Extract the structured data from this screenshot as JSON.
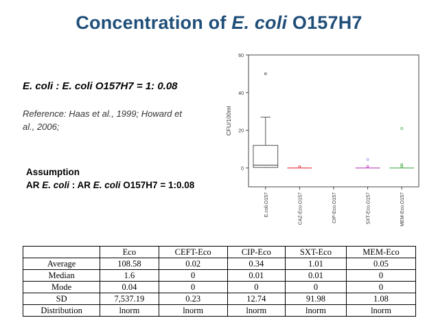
{
  "title": {
    "prefix": "Concentration of ",
    "italic": "E. coli",
    "suffix": " O157H7"
  },
  "ratio_text": "E. coli : E. coli O157H7 = 1: 0.08",
  "reference_text": "Reference: Haas et al., 1999; Howard et al., 2006;",
  "assumption": {
    "heading": "Assumption",
    "line_prefix": "AR ",
    "line_italic1": "E. coli",
    "line_mid": " : AR ",
    "line_italic2": "E. coli",
    "line_suffix": " O157H7 = 1:0.08"
  },
  "table": {
    "columns": [
      "",
      "Eco",
      "CEFT-Eco",
      "CIP-Eco",
      "SXT-Eco",
      "MEM-Eco"
    ],
    "rows": [
      [
        "Average",
        "108.58",
        "0.02",
        "0.34",
        "1.01",
        "0.05"
      ],
      [
        "Median",
        "1.6",
        "0",
        "0.01",
        "0.01",
        "0"
      ],
      [
        "Mode",
        "0.04",
        "0",
        "0",
        "0",
        "0"
      ],
      [
        "SD",
        "7,537.19",
        "0.23",
        "12.74",
        "91.98",
        "1.08"
      ],
      [
        "Distribution",
        "lnorm",
        "lnorm",
        "lnorm",
        "lnorm",
        "lnorm"
      ]
    ]
  },
  "chart_data": {
    "type": "box",
    "ylabel": "CFU/100ml",
    "ylim": [
      -10,
      60
    ],
    "yticks": [
      0,
      20,
      40,
      60
    ],
    "categories": [
      "E.coli.O157",
      "CAZ-Eco.O157",
      "CIP-Eco.O157",
      "SXT-Eco.O157",
      "MEM-Eco.O157"
    ],
    "series": [
      {
        "category": "E.coli.O157",
        "color": "#555555",
        "q1": 0.3,
        "median": 1.5,
        "q3": 12,
        "whisker_low": 0,
        "whisker_high": 27,
        "outliers": [
          50
        ]
      },
      {
        "category": "CAZ-Eco.O157",
        "color": "#e0303a",
        "q1": 0,
        "median": 0,
        "q3": 0,
        "whisker_low": 0,
        "whisker_high": 0,
        "outliers": [
          0.6
        ]
      },
      {
        "category": "CIP-Eco.O157",
        "color": "#3a8a3a",
        "q1": null,
        "median": null,
        "q3": null,
        "whisker_low": null,
        "whisker_high": null,
        "outliers": []
      },
      {
        "category": "SXT-Eco.O157",
        "color": "#c040c0",
        "q1": 0,
        "median": 0,
        "q3": 0,
        "whisker_low": 0,
        "whisker_high": 0,
        "outliers": [
          4.5,
          0.8
        ],
        "outlier_colors": [
          "#8899ee",
          "#c040c0"
        ]
      },
      {
        "category": "MEM-Eco.O157",
        "color": "#4caf50",
        "q1": 0,
        "median": 0,
        "q3": 0,
        "whisker_low": 0,
        "whisker_high": 0,
        "outliers": [
          21,
          1.8,
          0.9
        ]
      }
    ]
  }
}
